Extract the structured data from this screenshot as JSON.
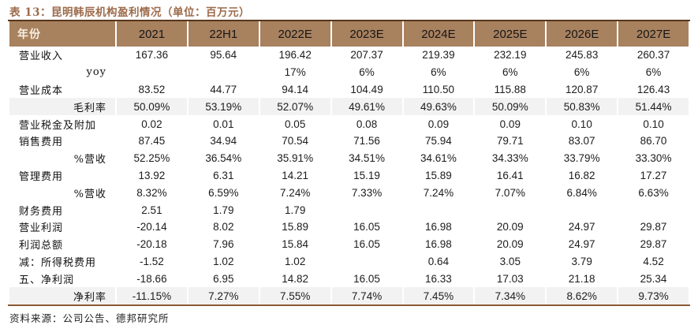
{
  "title": "表 13：昆明韩辰机构盈利情况（单位：百万元）",
  "footer": {
    "source": "资料来源：公司公告、德邦研究所"
  },
  "colors": {
    "title": "#9c6b4b",
    "header_bg": "#a8815f",
    "header_label": "#f7f0e2",
    "band_bg": "#f2f2f2",
    "border_top": "#58361b",
    "border_bottom": "#8a5a33"
  },
  "table": {
    "columns": [
      "年份",
      "2021",
      "22H1",
      "2022E",
      "2023E",
      "2024E",
      "2025E",
      "2026E",
      "2027E"
    ],
    "rows": [
      {
        "label": "营业收入",
        "sub": false,
        "band": false,
        "values": [
          "167.36",
          "95.64",
          "196.42",
          "207.37",
          "219.39",
          "232.19",
          "245.83",
          "260.37"
        ]
      },
      {
        "label": "yoy",
        "sub": true,
        "band": false,
        "values": [
          "",
          "",
          "17%",
          "6%",
          "6%",
          "6%",
          "6%",
          "6%"
        ]
      },
      {
        "label": "营业成本",
        "sub": false,
        "band": false,
        "values": [
          "83.52",
          "44.77",
          "94.14",
          "104.49",
          "110.50",
          "115.88",
          "120.87",
          "126.43"
        ]
      },
      {
        "label": "毛利率",
        "sub": true,
        "band": true,
        "values": [
          "50.09%",
          "53.19%",
          "52.07%",
          "49.61%",
          "49.63%",
          "50.09%",
          "50.83%",
          "51.44%"
        ]
      },
      {
        "label": "营业税金及附加",
        "sub": false,
        "band": false,
        "values": [
          "0.02",
          "0.01",
          "0.05",
          "0.08",
          "0.09",
          "0.09",
          "0.10",
          "0.10"
        ]
      },
      {
        "label": "销售费用",
        "sub": false,
        "band": false,
        "values": [
          "87.45",
          "34.94",
          "70.54",
          "71.56",
          "75.94",
          "79.71",
          "83.07",
          "86.70"
        ]
      },
      {
        "label": "%营收",
        "sub": true,
        "band": false,
        "values": [
          "52.25%",
          "36.54%",
          "35.91%",
          "34.51%",
          "34.61%",
          "34.33%",
          "33.79%",
          "33.30%"
        ]
      },
      {
        "label": "管理费用",
        "sub": false,
        "band": false,
        "values": [
          "13.92",
          "6.31",
          "14.21",
          "15.19",
          "15.89",
          "16.41",
          "16.82",
          "17.27"
        ]
      },
      {
        "label": "%营收",
        "sub": true,
        "band": false,
        "values": [
          "8.32%",
          "6.59%",
          "7.24%",
          "7.33%",
          "7.24%",
          "7.07%",
          "6.84%",
          "6.63%"
        ]
      },
      {
        "label": "财务费用",
        "sub": false,
        "band": false,
        "values": [
          "2.51",
          "1.79",
          "1.79",
          "",
          "",
          "",
          "",
          ""
        ]
      },
      {
        "label": "营业利润",
        "sub": false,
        "band": false,
        "values": [
          "-20.14",
          "8.02",
          "15.89",
          "16.05",
          "16.98",
          "20.09",
          "24.97",
          "29.87"
        ]
      },
      {
        "label": "利润总额",
        "sub": false,
        "band": false,
        "values": [
          "-20.18",
          "7.96",
          "15.84",
          "16.05",
          "16.98",
          "20.09",
          "24.97",
          "29.87"
        ]
      },
      {
        "label": "减：所得税费用",
        "sub": false,
        "band": false,
        "values": [
          "-1.52",
          "1.02",
          "1.02",
          "",
          "0.64",
          "3.05",
          "3.79",
          "4.52"
        ]
      },
      {
        "label": "五、净利润",
        "sub": false,
        "band": false,
        "values": [
          "-18.66",
          "6.95",
          "14.82",
          "16.05",
          "16.33",
          "17.03",
          "21.18",
          "25.34"
        ]
      },
      {
        "label": "净利率",
        "sub": true,
        "band": true,
        "values": [
          "-11.15%",
          "7.27%",
          "7.55%",
          "7.74%",
          "7.45%",
          "7.34%",
          "8.62%",
          "9.73%"
        ]
      }
    ]
  }
}
